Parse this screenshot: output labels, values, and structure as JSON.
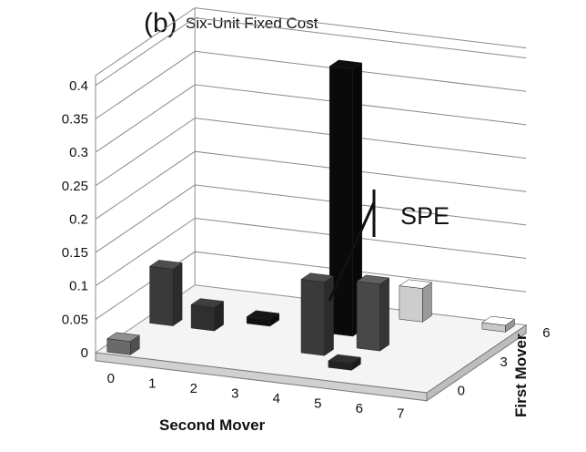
{
  "chart_data": {
    "type": "bar",
    "subtype": "3d-bar",
    "panel_label": "(b)",
    "title": "Six-Unit Fixed Cost",
    "xlabel": "Second Mover",
    "ylabel": "First Mover",
    "x_ticks": [
      "0",
      "1",
      "2",
      "3",
      "4",
      "5",
      "6",
      "7"
    ],
    "y_ticks": [
      "0",
      "3",
      "6"
    ],
    "z_ticks": [
      "0",
      "0.05",
      "0.1",
      "0.15",
      "0.2",
      "0.25",
      "0.3",
      "0.35",
      "0.4"
    ],
    "zlim": [
      0,
      0.4
    ],
    "grid": true,
    "annotation": "SPE",
    "bars": [
      {
        "x": 0,
        "y": 0,
        "z": 0.02,
        "color": "#6a6a6a"
      },
      {
        "x": 0,
        "y": 3,
        "z": 0.085,
        "color": "#3a3a3a"
      },
      {
        "x": 1,
        "y": 3,
        "z": 0.035,
        "color": "#2f2f2f"
      },
      {
        "x": 2,
        "y": 4,
        "z": 0.01,
        "color": "#111111"
      },
      {
        "x": 4,
        "y": 4,
        "z": 0.4,
        "color": "#0a0a0a"
      },
      {
        "x": 4,
        "y": 2,
        "z": 0.11,
        "color": "#3a3a3a"
      },
      {
        "x": 5,
        "y": 3,
        "z": 0.1,
        "color": "#484848"
      },
      {
        "x": 5,
        "y": 6,
        "z": 0.05,
        "color": "#cdcdcd"
      },
      {
        "x": 5,
        "y": 1,
        "z": 0.01,
        "color": "#222222"
      },
      {
        "x": 7,
        "y": 6,
        "z": 0.01,
        "color": "#c8c8c8"
      }
    ]
  }
}
